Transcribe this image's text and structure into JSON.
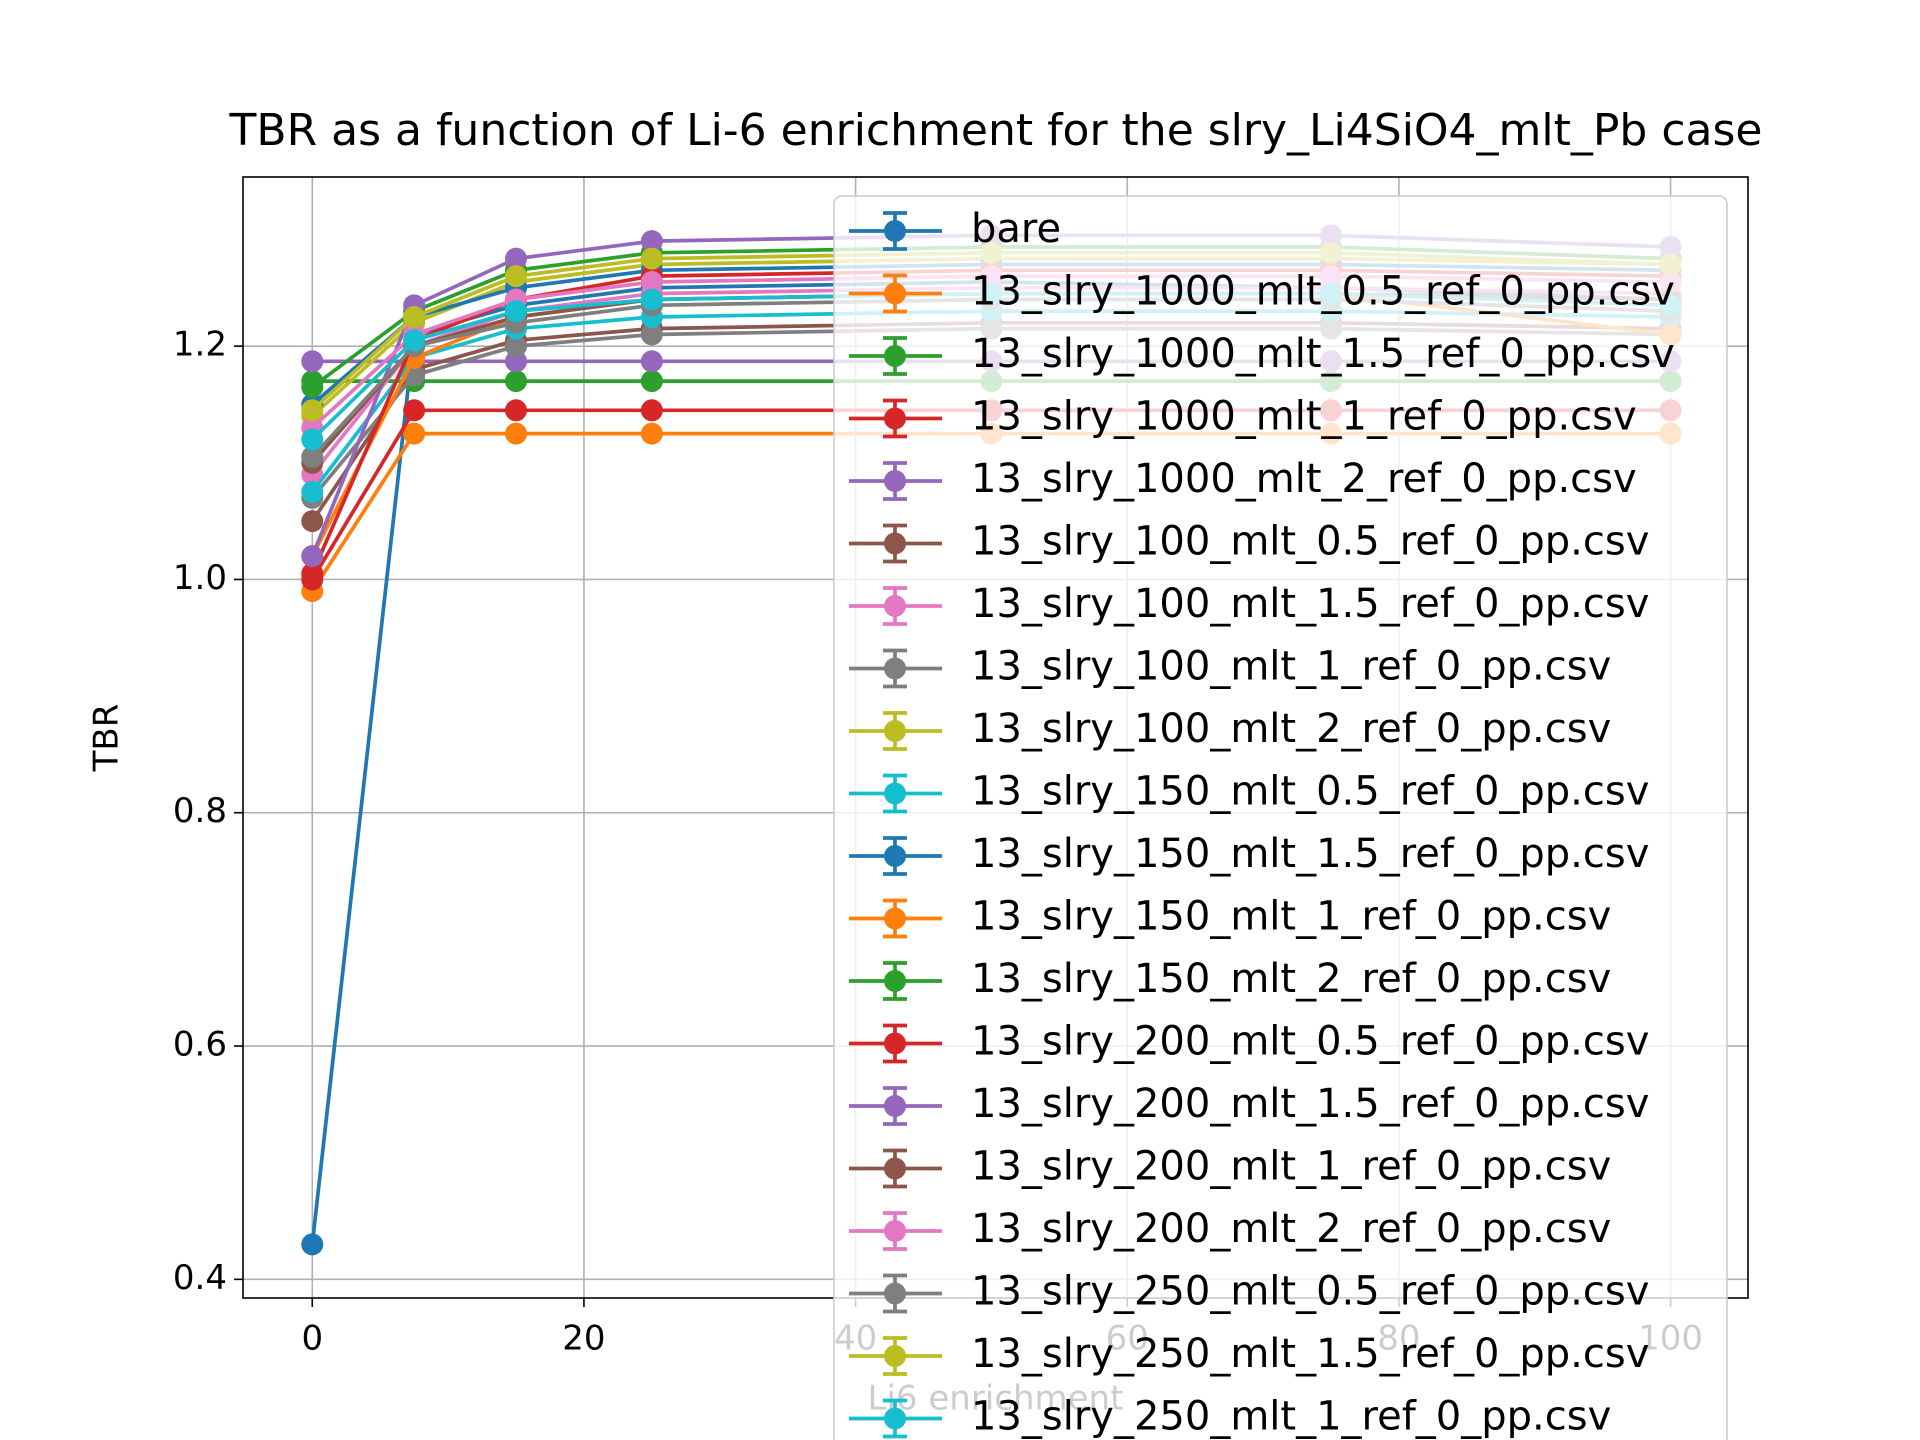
{
  "chart_data": {
    "type": "line",
    "title": "TBR as a function of Li-6 enrichment for the slry_Li4SiO4_mlt_Pb case",
    "xlabel": "Li6 enrichment",
    "ylabel": "TBR",
    "x": [
      0,
      7.5,
      15,
      25,
      50,
      75,
      100
    ],
    "xlim": [
      -5.1,
      105.7
    ],
    "ylim": [
      0.384,
      1.345
    ],
    "xticks": [
      0,
      20,
      40,
      60,
      80,
      100
    ],
    "yticks": [
      0.4,
      0.6,
      0.8,
      {
        "value": 1,
        "label": "1.0"
      },
      1.2
    ],
    "grid": true,
    "legend": "upper right",
    "series": [
      {
        "name": "bare",
        "color": "#1f77b4",
        "values": [
          0.43,
          1.21,
          1.235,
          1.25,
          1.255,
          1.25,
          1.24
        ]
      },
      {
        "name": "13_slry_1000_mlt_0.5_ref_0_pp.csv",
        "color": "#ff7f0e",
        "values": [
          0.99,
          1.125,
          1.125,
          1.125,
          1.125,
          1.125,
          1.125
        ]
      },
      {
        "name": "13_slry_1000_mlt_1.5_ref_0_pp.csv",
        "color": "#2ca02c",
        "values": [
          1.17,
          1.17,
          1.17,
          1.17,
          1.17,
          1.17,
          1.17
        ]
      },
      {
        "name": "13_slry_1000_mlt_1_ref_0_pp.csv",
        "color": "#d62728",
        "values": [
          1.0,
          1.145,
          1.145,
          1.145,
          1.145,
          1.145,
          1.145
        ]
      },
      {
        "name": "13_slry_1000_mlt_2_ref_0_pp.csv",
        "color": "#9467bd",
        "values": [
          1.187,
          1.187,
          1.187,
          1.187,
          1.187,
          1.187,
          1.187
        ]
      },
      {
        "name": "13_slry_100_mlt_0.5_ref_0_pp.csv",
        "color": "#8c564b",
        "values": [
          1.05,
          1.18,
          1.205,
          1.215,
          1.22,
          1.22,
          1.215
        ]
      },
      {
        "name": "13_slry_100_mlt_1.5_ref_0_pp.csv",
        "color": "#e377c2",
        "values": [
          1.09,
          1.2,
          1.23,
          1.245,
          1.25,
          1.25,
          1.245
        ]
      },
      {
        "name": "13_slry_100_mlt_1_ref_0_pp.csv",
        "color": "#7f7f7f",
        "values": [
          1.07,
          1.175,
          1.2,
          1.21,
          1.215,
          1.215,
          1.21
        ]
      },
      {
        "name": "13_slry_100_mlt_2_ref_0_pp.csv",
        "color": "#bcbd22",
        "values": [
          1.14,
          1.22,
          1.255,
          1.27,
          1.275,
          1.275,
          1.27
        ]
      },
      {
        "name": "13_slry_150_mlt_0.5_ref_0_pp.csv",
        "color": "#17becf",
        "values": [
          1.075,
          1.19,
          1.215,
          1.225,
          1.23,
          1.23,
          1.225
        ]
      },
      {
        "name": "13_slry_150_mlt_1.5_ref_0_pp.csv",
        "color": "#1f77b4",
        "values": [
          1.15,
          1.225,
          1.25,
          1.265,
          1.27,
          1.27,
          1.265
        ]
      },
      {
        "name": "13_slry_150_mlt_1_ref_0_pp.csv",
        "color": "#ff7f0e",
        "values": [
          1.02,
          1.19,
          1.225,
          1.24,
          1.245,
          1.245,
          1.21
        ]
      },
      {
        "name": "13_slry_150_mlt_2_ref_0_pp.csv",
        "color": "#2ca02c",
        "values": [
          1.165,
          1.23,
          1.265,
          1.28,
          1.285,
          1.285,
          1.275
        ]
      },
      {
        "name": "13_slry_200_mlt_0.5_ref_0_pp.csv",
        "color": "#d62728",
        "values": [
          1.005,
          1.205,
          1.24,
          1.26,
          1.265,
          1.265,
          1.26
        ]
      },
      {
        "name": "13_slry_200_mlt_1.5_ref_0_pp.csv",
        "color": "#9467bd",
        "values": [
          1.02,
          1.235,
          1.275,
          1.29,
          1.295,
          1.295,
          1.285
        ]
      },
      {
        "name": "13_slry_200_mlt_1_ref_0_pp.csv",
        "color": "#8c564b",
        "values": [
          1.1,
          1.2,
          1.225,
          1.24,
          1.245,
          1.245,
          1.24
        ]
      },
      {
        "name": "13_slry_200_mlt_2_ref_0_pp.csv",
        "color": "#e377c2",
        "values": [
          1.13,
          1.21,
          1.24,
          1.255,
          1.26,
          1.26,
          1.255
        ]
      },
      {
        "name": "13_slry_250_mlt_0.5_ref_0_pp.csv",
        "color": "#7f7f7f",
        "values": [
          1.105,
          1.2,
          1.22,
          1.235,
          1.24,
          1.24,
          1.23
        ]
      },
      {
        "name": "13_slry_250_mlt_1.5_ref_0_pp.csv",
        "color": "#bcbd22",
        "values": [
          1.145,
          1.225,
          1.26,
          1.275,
          1.28,
          1.28,
          1.27
        ]
      },
      {
        "name": "13_slry_250_mlt_1_ref_0_pp.csv",
        "color": "#17becf",
        "values": [
          1.12,
          1.205,
          1.23,
          1.24,
          1.245,
          1.245,
          1.235
        ]
      }
    ]
  }
}
